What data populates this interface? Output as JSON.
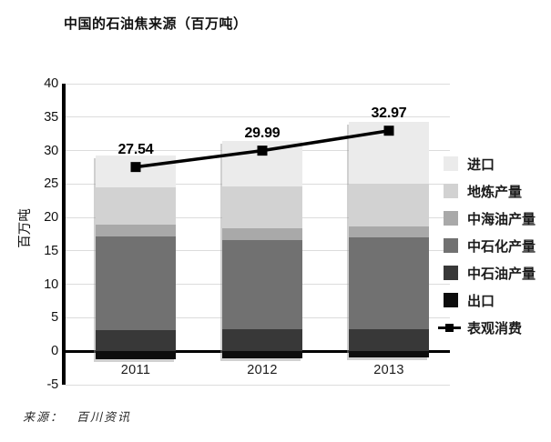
{
  "source": {
    "prefix": "来源：",
    "name": "百川资讯"
  },
  "chart_data": {
    "type": "bar",
    "stacked": true,
    "title": "中国的石油焦来源（百万吨）",
    "xlabel": "",
    "ylabel": "百万吨",
    "categories": [
      "2011",
      "2012",
      "2013"
    ],
    "series": [
      {
        "name": "出口",
        "color": "#0d0d0d",
        "values": [
          -1.2,
          -1.0,
          -0.9
        ]
      },
      {
        "name": "中石油产量",
        "color": "#383838",
        "values": [
          3.2,
          3.3,
          3.3
        ]
      },
      {
        "name": "中石化产量",
        "color": "#717171",
        "values": [
          14.0,
          13.3,
          13.7
        ]
      },
      {
        "name": "中海油产量",
        "color": "#a9a9a9",
        "values": [
          1.7,
          1.8,
          1.6
        ]
      },
      {
        "name": "地炼产量",
        "color": "#d2d2d2",
        "values": [
          5.6,
          6.2,
          6.5
        ]
      },
      {
        "name": "进口",
        "color": "#ebebeb",
        "values": [
          4.8,
          6.9,
          9.2
        ]
      }
    ],
    "line_series": {
      "name": "表观消费",
      "color": "#000000",
      "values": [
        27.54,
        29.99,
        32.97
      ],
      "labels": [
        "27.54",
        "29.99",
        "32.97"
      ]
    },
    "legend": [
      {
        "label": "进口",
        "type": "box",
        "color": "#ebebeb"
      },
      {
        "label": "地炼产量",
        "type": "box",
        "color": "#d2d2d2"
      },
      {
        "label": "中海油产量",
        "type": "box",
        "color": "#a9a9a9"
      },
      {
        "label": "中石化产量",
        "type": "box",
        "color": "#717171"
      },
      {
        "label": "中石油产量",
        "type": "box",
        "color": "#383838"
      },
      {
        "label": "出口",
        "type": "box",
        "color": "#0d0d0d"
      },
      {
        "label": "表观消费",
        "type": "line",
        "color": "#000000"
      }
    ],
    "ylim": [
      -5,
      40
    ],
    "yticks": [
      40,
      35,
      30,
      25,
      20,
      15,
      10,
      5,
      0,
      -5
    ],
    "grid": true,
    "legend_position": "right"
  }
}
